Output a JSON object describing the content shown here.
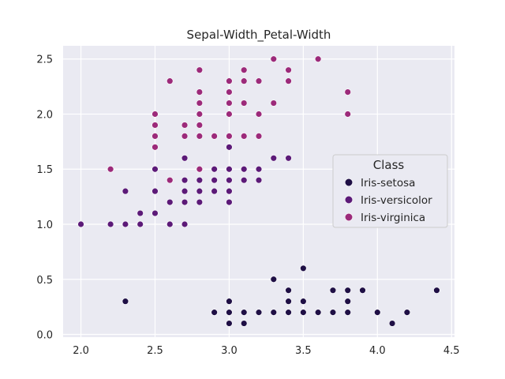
{
  "chart_data": {
    "type": "scatter",
    "title": "Sepal-Width_Petal-Width",
    "xlabel": "",
    "ylabel": "",
    "xlim": [
      1.88,
      4.52
    ],
    "ylim": [
      -0.025,
      2.62
    ],
    "xticks": [
      "2.0",
      "2.5",
      "3.0",
      "3.5",
      "4.0",
      "4.5"
    ],
    "xtick_values": [
      2.0,
      2.5,
      3.0,
      3.5,
      4.0,
      4.5
    ],
    "yticks": [
      "0.0",
      "0.5",
      "1.0",
      "1.5",
      "2.0",
      "2.5"
    ],
    "ytick_values": [
      0.0,
      0.5,
      1.0,
      1.5,
      2.0,
      2.5
    ],
    "grid": true,
    "legend": {
      "title": "Class",
      "position": "center-right"
    },
    "series": [
      {
        "name": "Iris-setosa",
        "color": "#1f0f45",
        "points": [
          [
            2.3,
            0.3
          ],
          [
            2.9,
            0.2
          ],
          [
            3.0,
            0.1
          ],
          [
            3.0,
            0.2
          ],
          [
            3.0,
            0.3
          ],
          [
            3.1,
            0.1
          ],
          [
            3.1,
            0.2
          ],
          [
            3.2,
            0.2
          ],
          [
            3.3,
            0.2
          ],
          [
            3.3,
            0.5
          ],
          [
            3.4,
            0.2
          ],
          [
            3.4,
            0.3
          ],
          [
            3.4,
            0.4
          ],
          [
            3.5,
            0.2
          ],
          [
            3.5,
            0.3
          ],
          [
            3.5,
            0.6
          ],
          [
            3.6,
            0.2
          ],
          [
            3.7,
            0.2
          ],
          [
            3.7,
            0.4
          ],
          [
            3.8,
            0.2
          ],
          [
            3.8,
            0.3
          ],
          [
            3.8,
            0.4
          ],
          [
            3.9,
            0.4
          ],
          [
            4.0,
            0.2
          ],
          [
            4.1,
            0.1
          ],
          [
            4.2,
            0.2
          ],
          [
            4.4,
            0.4
          ]
        ]
      },
      {
        "name": "Iris-versicolor",
        "color": "#5c1a78",
        "points": [
          [
            2.0,
            1.0
          ],
          [
            2.2,
            1.0
          ],
          [
            2.3,
            1.0
          ],
          [
            2.3,
            1.3
          ],
          [
            2.4,
            1.0
          ],
          [
            2.4,
            1.1
          ],
          [
            2.5,
            1.1
          ],
          [
            2.5,
            1.3
          ],
          [
            2.5,
            1.5
          ],
          [
            2.6,
            1.0
          ],
          [
            2.6,
            1.2
          ],
          [
            2.7,
            1.0
          ],
          [
            2.7,
            1.2
          ],
          [
            2.7,
            1.3
          ],
          [
            2.7,
            1.4
          ],
          [
            2.7,
            1.6
          ],
          [
            2.8,
            1.2
          ],
          [
            2.8,
            1.3
          ],
          [
            2.8,
            1.4
          ],
          [
            2.9,
            1.3
          ],
          [
            2.9,
            1.4
          ],
          [
            2.9,
            1.5
          ],
          [
            3.0,
            1.2
          ],
          [
            3.0,
            1.3
          ],
          [
            3.0,
            1.4
          ],
          [
            3.0,
            1.5
          ],
          [
            3.0,
            1.7
          ],
          [
            3.1,
            1.4
          ],
          [
            3.1,
            1.5
          ],
          [
            3.2,
            1.4
          ],
          [
            3.2,
            1.5
          ],
          [
            3.3,
            1.6
          ],
          [
            3.4,
            1.6
          ]
        ]
      },
      {
        "name": "Iris-virginica",
        "color": "#9c2a7a",
        "points": [
          [
            2.2,
            1.5
          ],
          [
            2.5,
            1.7
          ],
          [
            2.5,
            1.8
          ],
          [
            2.5,
            1.9
          ],
          [
            2.5,
            2.0
          ],
          [
            2.6,
            1.4
          ],
          [
            2.6,
            2.3
          ],
          [
            2.7,
            1.8
          ],
          [
            2.7,
            1.9
          ],
          [
            2.8,
            1.5
          ],
          [
            2.8,
            1.8
          ],
          [
            2.8,
            1.9
          ],
          [
            2.8,
            2.0
          ],
          [
            2.8,
            2.1
          ],
          [
            2.8,
            2.2
          ],
          [
            2.8,
            2.4
          ],
          [
            2.9,
            1.8
          ],
          [
            3.0,
            1.8
          ],
          [
            3.0,
            2.0
          ],
          [
            3.0,
            2.1
          ],
          [
            3.0,
            2.2
          ],
          [
            3.0,
            2.3
          ],
          [
            3.1,
            1.8
          ],
          [
            3.1,
            2.1
          ],
          [
            3.1,
            2.3
          ],
          [
            3.1,
            2.4
          ],
          [
            3.2,
            1.8
          ],
          [
            3.2,
            2.0
          ],
          [
            3.2,
            2.3
          ],
          [
            3.3,
            2.1
          ],
          [
            3.3,
            2.5
          ],
          [
            3.4,
            2.3
          ],
          [
            3.4,
            2.4
          ],
          [
            3.6,
            2.5
          ],
          [
            3.8,
            2.0
          ],
          [
            3.8,
            2.2
          ]
        ]
      }
    ]
  }
}
